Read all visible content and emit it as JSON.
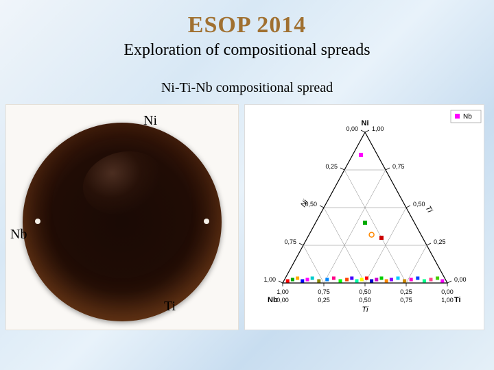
{
  "title": "ESOP 2014",
  "subtitle": "Exploration of compositional spreads",
  "section_title": "Ni-Ti-Nb compositional spread",
  "wafer_labels": {
    "ni": "Ni",
    "nb": "Nb",
    "ti": "Ti"
  },
  "ternary": {
    "apex_top": "Ni",
    "apex_left": "Nb",
    "apex_right": "Ti",
    "axis_left": "Ni",
    "axis_right": "Ti",
    "axis_bottom": "Ti",
    "legend_label": "Nb",
    "legend_marker_color": "#ff00ff",
    "ticks_left": [
      "0,00",
      "0,25",
      "0,50",
      "0,75",
      "1,00"
    ],
    "ticks_right": [
      "1,00",
      "0,75",
      "0,50",
      "0,25",
      "0,00"
    ],
    "ticks_bottom_top_row": [
      "1,00",
      "0,75",
      "0,50",
      "0,25",
      "0,00"
    ],
    "ticks_bottom_bot_row": [
      "0,00",
      "0,25",
      "0,50",
      "0,75",
      "1,00"
    ],
    "line_color": "#000000",
    "grid_color": "#808080",
    "tick_fontsize": 9,
    "axis_label_fontsize": 11,
    "points_interior": [
      {
        "a": 0.85,
        "b": 0.1,
        "c": 0.05,
        "color": "#ff00ff",
        "shape": "square"
      },
      {
        "a": 0.4,
        "b": 0.3,
        "c": 0.3,
        "color": "#00aa00",
        "shape": "square"
      },
      {
        "a": 0.32,
        "b": 0.3,
        "c": 0.38,
        "color": "#ff8800",
        "shape": "circle"
      },
      {
        "a": 0.3,
        "b": 0.25,
        "c": 0.45,
        "color": "#cc0000",
        "shape": "square"
      }
    ],
    "bottom_strip_points": [
      {
        "t": 0.03,
        "color": "#ff0000"
      },
      {
        "t": 0.06,
        "color": "#00aa00"
      },
      {
        "t": 0.09,
        "color": "#ffaa00"
      },
      {
        "t": 0.12,
        "color": "#0000ff"
      },
      {
        "t": 0.15,
        "color": "#ff00ff"
      },
      {
        "t": 0.18,
        "color": "#00cccc"
      },
      {
        "t": 0.22,
        "color": "#888800"
      },
      {
        "t": 0.27,
        "color": "#0088ff"
      },
      {
        "t": 0.31,
        "color": "#ff0088"
      },
      {
        "t": 0.35,
        "color": "#00ff00"
      },
      {
        "t": 0.39,
        "color": "#ff4400"
      },
      {
        "t": 0.42,
        "color": "#4400ff"
      },
      {
        "t": 0.45,
        "color": "#00ffaa"
      },
      {
        "t": 0.48,
        "color": "#ffff00"
      },
      {
        "t": 0.51,
        "color": "#ff0000"
      },
      {
        "t": 0.54,
        "color": "#0000cc"
      },
      {
        "t": 0.57,
        "color": "#cc00cc"
      },
      {
        "t": 0.6,
        "color": "#00cc00"
      },
      {
        "t": 0.63,
        "color": "#ff8800"
      },
      {
        "t": 0.66,
        "color": "#8800ff"
      },
      {
        "t": 0.7,
        "color": "#00ccff"
      },
      {
        "t": 0.74,
        "color": "#cc8800"
      },
      {
        "t": 0.78,
        "color": "#ff00cc"
      },
      {
        "t": 0.82,
        "color": "#0044ff"
      },
      {
        "t": 0.86,
        "color": "#00ff88"
      },
      {
        "t": 0.9,
        "color": "#ff4488"
      },
      {
        "t": 0.94,
        "color": "#44cc00"
      },
      {
        "t": 0.97,
        "color": "#ff00ff"
      }
    ]
  }
}
